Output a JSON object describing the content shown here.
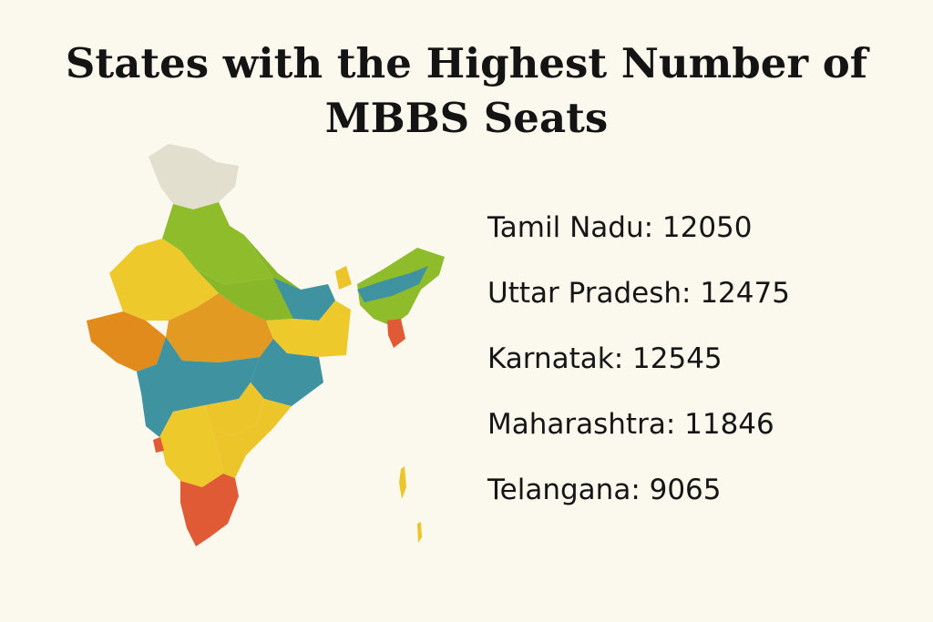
{
  "title_line1": "States with the Highest Number of",
  "title_line2": "MBBS Seats",
  "stats": [
    {
      "text": "Tamil Nadu:  12050"
    },
    {
      "text": "Uttar Pradesh:  12475"
    },
    {
      "text": "Karnatak: 12545"
    },
    {
      "text": "Maharashtra: 11846"
    },
    {
      "text": "Telangana: 9065"
    }
  ],
  "colors": {
    "background": "#fbf8ee",
    "north": "#e3dfcf",
    "lime": "#8fbc2a",
    "yellow": "#ecc52a",
    "orange": "#e08b1b",
    "teal": "#3f92a0",
    "red": "#e05a35"
  }
}
